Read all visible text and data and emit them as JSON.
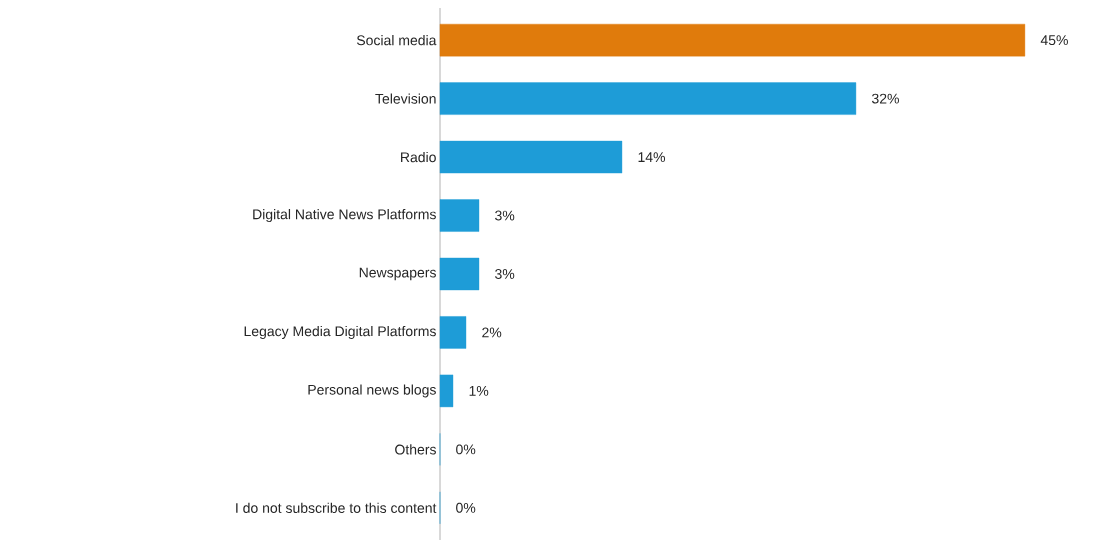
{
  "chart_data": {
    "type": "bar",
    "orientation": "horizontal",
    "categories": [
      "Social media",
      "Television",
      "Radio",
      "Digital Native News Platforms",
      "Newspapers",
      "Legacy Media Digital Platforms",
      "Personal news blogs",
      "Others",
      "I do not subscribe to this content"
    ],
    "values": [
      45,
      32,
      14,
      3,
      3,
      2,
      1,
      0,
      0
    ],
    "colors": [
      "#e07b0c",
      "#1e9cd7",
      "#1e9cd7",
      "#1e9cd7",
      "#1e9cd7",
      "#1e9cd7",
      "#1e9cd7",
      "#1e9cd7",
      "#1e9cd7"
    ],
    "value_labels": [
      "45%",
      "32%",
      "14%",
      "3%",
      "3%",
      "2%",
      "1%",
      "0%",
      "0%"
    ]
  }
}
